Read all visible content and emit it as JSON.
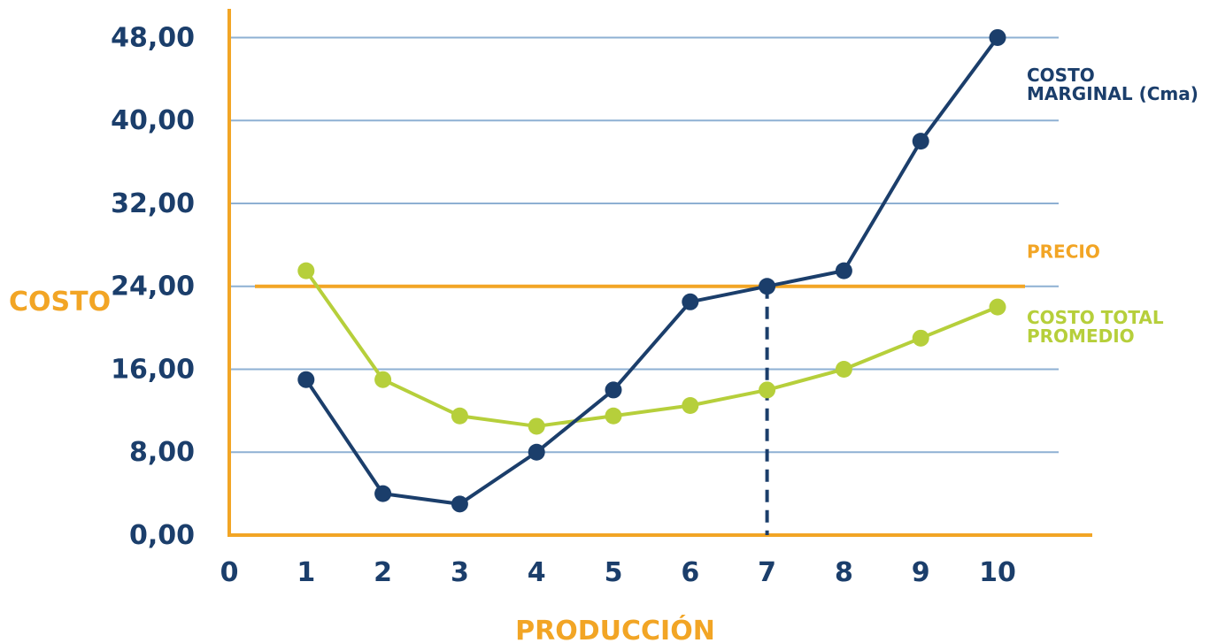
{
  "chart_data": {
    "type": "line",
    "title": "",
    "xlabel": "PRODUCCIÓN",
    "ylabel": "COSTO",
    "x": [
      1,
      2,
      3,
      4,
      5,
      6,
      7,
      8,
      9,
      10
    ],
    "xticks": [
      "0",
      "1",
      "2",
      "3",
      "4",
      "5",
      "6",
      "7",
      "8",
      "9",
      "10"
    ],
    "xlim": [
      0,
      11
    ],
    "yticks": [
      "0,00",
      "8,00",
      "16,00",
      "24,00",
      "32,00",
      "40,00",
      "48,00"
    ],
    "ylim": [
      0,
      48
    ],
    "grid": true,
    "series": [
      {
        "name_lines": [
          "COSTO",
          "MARGINAL (Cma)"
        ],
        "color": "#1b3e6b",
        "values": [
          15.0,
          4.0,
          3.0,
          8.0,
          14.0,
          22.5,
          24.0,
          25.5,
          38.0,
          48.0
        ]
      },
      {
        "name_lines": [
          "COSTO TOTAL",
          "PROMEDIO"
        ],
        "color": "#b6cf3b",
        "values": [
          25.5,
          15.0,
          11.5,
          10.5,
          11.5,
          12.5,
          14.0,
          16.0,
          19.0,
          22.0
        ]
      }
    ],
    "reference_lines": [
      {
        "name": "PRECIO",
        "value": 24,
        "color": "#f2a525"
      }
    ],
    "marker": {
      "x": 7,
      "value": 24,
      "style": "dashed",
      "color": "#1b3e6b"
    }
  },
  "colors": {
    "axis": "#f2a525",
    "grid": "#8eb0d3",
    "ticks": "#1b3e6b"
  }
}
